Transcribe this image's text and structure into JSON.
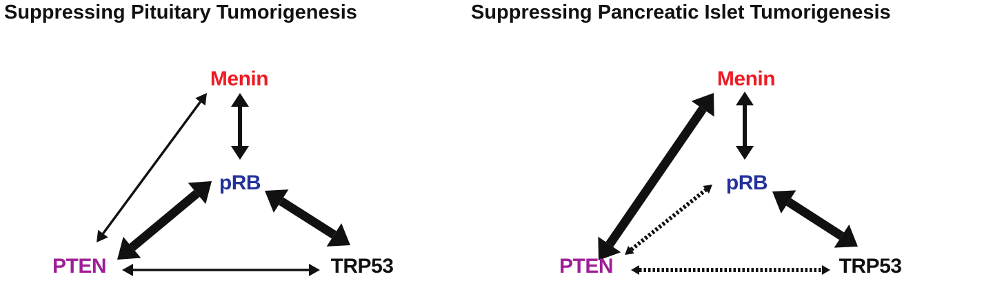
{
  "panels": [
    {
      "title": "Suppressing Pituitary Tumorigenesis",
      "nodes": {
        "menin": "Menin",
        "prb": "pRB",
        "pten": "PTEN",
        "trp53": "TRP53"
      },
      "edges": [
        {
          "from": "pten",
          "to": "menin",
          "style": "solid",
          "weight": "thin"
        },
        {
          "from": "menin",
          "to": "prb",
          "style": "solid",
          "weight": "medium"
        },
        {
          "from": "pten",
          "to": "prb",
          "style": "solid",
          "weight": "thick"
        },
        {
          "from": "prb",
          "to": "trp53",
          "style": "solid",
          "weight": "thick"
        },
        {
          "from": "pten",
          "to": "trp53",
          "style": "solid",
          "weight": "thin"
        }
      ]
    },
    {
      "title": "Suppressing Pancreatic Islet Tumorigenesis",
      "nodes": {
        "menin": "Menin",
        "prb": "pRB",
        "pten": "PTEN",
        "trp53": "TRP53"
      },
      "edges": [
        {
          "from": "pten",
          "to": "menin",
          "style": "solid",
          "weight": "thick"
        },
        {
          "from": "menin",
          "to": "prb",
          "style": "solid",
          "weight": "medium"
        },
        {
          "from": "pten",
          "to": "prb",
          "style": "dotted",
          "weight": "thin"
        },
        {
          "from": "prb",
          "to": "trp53",
          "style": "solid",
          "weight": "thick"
        },
        {
          "from": "pten",
          "to": "trp53",
          "style": "dotted",
          "weight": "thin"
        }
      ]
    }
  ],
  "colors": {
    "menin": "#ee1c24",
    "prb": "#23319a",
    "pten": "#a01e96",
    "trp53": "#111111",
    "arrow": "#111111"
  }
}
